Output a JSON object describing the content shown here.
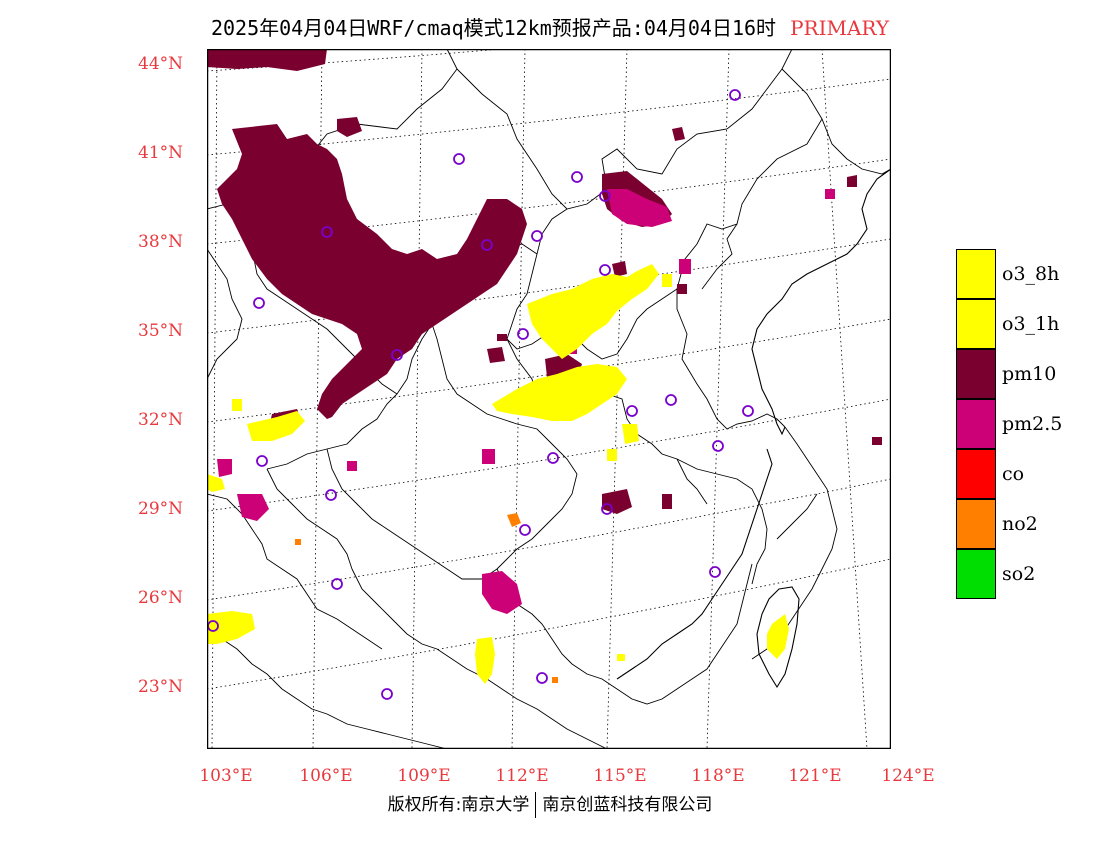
{
  "header": {
    "title": "2025年04月04日WRF/cmaq模式12km预报产品:04月04日16时",
    "tag": "PRIMARY"
  },
  "axes": {
    "lat_labels": [
      "44°N",
      "41°N",
      "38°N",
      "35°N",
      "32°N",
      "29°N",
      "26°N",
      "23°N"
    ],
    "lon_labels": [
      "103°E",
      "106°E",
      "109°E",
      "112°E",
      "115°E",
      "118°E",
      "121°E",
      "124°E"
    ]
  },
  "legend": {
    "items": [
      {
        "label": "o3_8h",
        "color": "#ffff00"
      },
      {
        "label": "o3_1h",
        "color": "#ffff00"
      },
      {
        "label": "pm10",
        "color": "#7a0030"
      },
      {
        "label": "pm2.5",
        "color": "#cc0077"
      },
      {
        "label": "co",
        "color": "#ff0000"
      },
      {
        "label": "no2",
        "color": "#ff8000"
      },
      {
        "label": "so2",
        "color": "#00dd00"
      }
    ]
  },
  "footer": {
    "left": "版权所有:南京大学",
    "right": "南京创蓝科技有限公司"
  },
  "colors": {
    "tick_label": "#e8393e",
    "station_marker": "#7a00cc"
  }
}
